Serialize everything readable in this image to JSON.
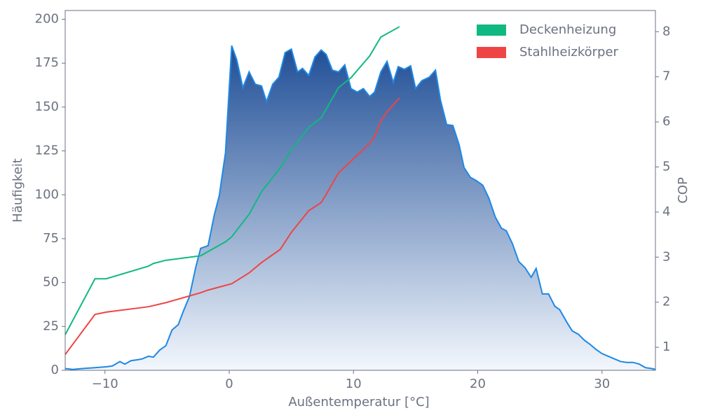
{
  "chart_data": {
    "type": "line",
    "x_label": "Außentemperatur [°C]",
    "y_label": "Häufigkeit",
    "y2_label": "COP",
    "xlim": [
      -13.2,
      34.3
    ],
    "ylim": [
      0,
      205
    ],
    "y2lim": [
      0.49,
      8.47
    ],
    "xticks": [
      {
        "value": -10,
        "label": "−10"
      },
      0,
      10,
      20,
      30
    ],
    "yticks": [
      0,
      25,
      50,
      75,
      100,
      125,
      150,
      175,
      200
    ],
    "y2ticks": [
      1,
      2,
      3,
      4,
      5,
      6,
      7,
      8
    ],
    "legend": "top-right",
    "series": [
      {
        "type": "area",
        "color": "#1e88e5",
        "fill_top": "#1f4e96",
        "fill_bottom": "#f3f7fd",
        "x": [
          -13.2,
          -12.6,
          -11.8,
          -10.8,
          -9.9,
          -9.4,
          -8.8,
          -8.4,
          -7.9,
          -7.4,
          -7.0,
          -6.5,
          -6.1,
          -5.6,
          -5.1,
          -4.6,
          -4.1,
          -3.7,
          -3.2,
          -2.7,
          -2.3,
          -1.7,
          -1.2,
          -0.8,
          -0.3,
          0.2,
          0.6,
          1.1,
          1.6,
          2.1,
          2.6,
          3.0,
          3.5,
          4.0,
          4.5,
          5.0,
          5.5,
          5.9,
          6.4,
          6.9,
          7.4,
          7.8,
          8.3,
          8.8,
          9.3,
          9.8,
          10.3,
          10.8,
          11.3,
          11.7,
          12.2,
          12.7,
          13.2,
          13.6,
          14.1,
          14.6,
          15.0,
          15.5,
          16.1,
          16.6,
          17.0,
          17.5,
          18.0,
          18.5,
          18.9,
          19.4,
          19.9,
          20.4,
          20.9,
          21.4,
          21.9,
          22.3,
          22.8,
          23.3,
          23.8,
          24.3,
          24.7,
          25.2,
          25.7,
          26.2,
          26.6,
          27.2,
          27.6,
          28.1,
          28.6,
          29.0,
          29.5,
          30.0,
          30.5,
          31.0,
          31.5,
          32.0,
          32.5,
          33.0,
          33.5,
          34.0,
          34.3
        ],
        "values": [
          1,
          0.5,
          1,
          1.5,
          2,
          2.5,
          5,
          3.5,
          5.5,
          6,
          6.5,
          8,
          7.5,
          11.5,
          14,
          23,
          26,
          33.5,
          42,
          58.5,
          69.5,
          71,
          88.5,
          99.5,
          124,
          185,
          177,
          161,
          170,
          163,
          162,
          153,
          163,
          167,
          181,
          183,
          170,
          172,
          168,
          178.5,
          182.5,
          180,
          171,
          170,
          174,
          160.5,
          158.5,
          160.5,
          156,
          158.5,
          170,
          176,
          164,
          173,
          171.5,
          173.5,
          160.5,
          165,
          167,
          171,
          154,
          140,
          139.5,
          128.5,
          115.5,
          110,
          108,
          105.5,
          98,
          87.5,
          81,
          79.5,
          72,
          62,
          58.5,
          53,
          58,
          43.5,
          43.5,
          36.5,
          34.5,
          27,
          22.5,
          20.5,
          17,
          15,
          12,
          9.5,
          8,
          6.5,
          5,
          4.5,
          4.5,
          3.5,
          1.5,
          1,
          0.5
        ]
      },
      {
        "type": "line",
        "axis": "y2",
        "name": "Deckenheizung",
        "color": "#10b981",
        "x": [
          -13.2,
          -10.8,
          -9.9,
          -6.5,
          -6.1,
          -5.1,
          -2.3,
          -0.3,
          0.2,
          1.6,
          2.6,
          4.1,
          5.0,
          6.4,
          7.4,
          8.8,
          9.8,
          11.3,
          12.2,
          13.7
        ],
        "values": [
          1.28,
          2.52,
          2.52,
          2.8,
          2.86,
          2.93,
          3.03,
          3.34,
          3.45,
          3.95,
          4.45,
          4.98,
          5.38,
          5.88,
          6.09,
          6.76,
          6.98,
          7.46,
          7.88,
          8.11
        ]
      },
      {
        "type": "line",
        "axis": "y2",
        "name": "Stahlheizkörper",
        "color": "#ef4444",
        "x": [
          -13.2,
          -10.8,
          -9.9,
          -6.5,
          -5.1,
          -2.3,
          -1.7,
          0.2,
          1.6,
          2.6,
          4.1,
          5.0,
          6.4,
          7.4,
          7.8,
          8.8,
          9.8,
          11.3,
          11.7,
          12.2,
          12.7,
          13.7
        ],
        "values": [
          0.84,
          1.73,
          1.78,
          1.9,
          1.99,
          2.21,
          2.27,
          2.41,
          2.65,
          2.88,
          3.17,
          3.55,
          4.03,
          4.21,
          4.39,
          4.87,
          5.13,
          5.52,
          5.67,
          6.02,
          6.22,
          6.53
        ]
      }
    ]
  }
}
